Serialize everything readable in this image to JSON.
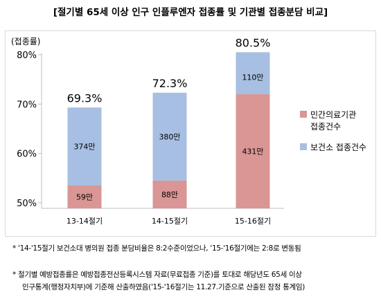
{
  "title": "[절기별 65세 이상 인구 인플루엔자 접종률 및 기관별 접종분담 비교]",
  "chart_data": {
    "type": "bar",
    "stacked": true,
    "ylabel": "(접종률)",
    "ylim": [
      50,
      80
    ],
    "yticks": [
      "50%",
      "60%",
      "70%",
      "80%"
    ],
    "ytick_values": [
      50,
      60,
      70,
      80
    ],
    "categories": [
      "13-14절기",
      "14-15절기",
      "15-16절기"
    ],
    "totals": [
      69.3,
      72.3,
      80.5
    ],
    "total_labels": [
      "69.3%",
      "72.3%",
      "80.5%"
    ],
    "series": [
      {
        "name": "민간의료기관 접종건수",
        "color": "#d99694",
        "boundaries": [
          53.5,
          54.5,
          72.0
        ],
        "labels": [
          "59만",
          "88만",
          "431만"
        ]
      },
      {
        "name": "보건소 접종건수",
        "color": "#a7bfe2",
        "labels": [
          "374만",
          "380만",
          "110만"
        ]
      }
    ],
    "legend_position": "right",
    "legend": [
      {
        "lines": [
          "민간의료기관",
          "접종건수"
        ],
        "color": "#d99694"
      },
      {
        "lines": [
          "보건소 접종건수"
        ],
        "color": "#a7bfe2"
      }
    ],
    "grid": false
  },
  "notes": {
    "note1": "* '14-'15절기 보건소대 병의원 접종 분담비율은 8:2수준이었으나, '15-'16절기에는 2:8로 변동됨",
    "note2_line1": "* 절기별 예방접종률은 예방접종전산등록시스템 자료(무료접종 기준)를 토대로 해당년도 65세 이상",
    "note2_line2": "인구통계(행정자치부)에 기준해 산출하였음('15-'16절기는 11.27.기준으로 산출된 잠정 통계임)"
  }
}
